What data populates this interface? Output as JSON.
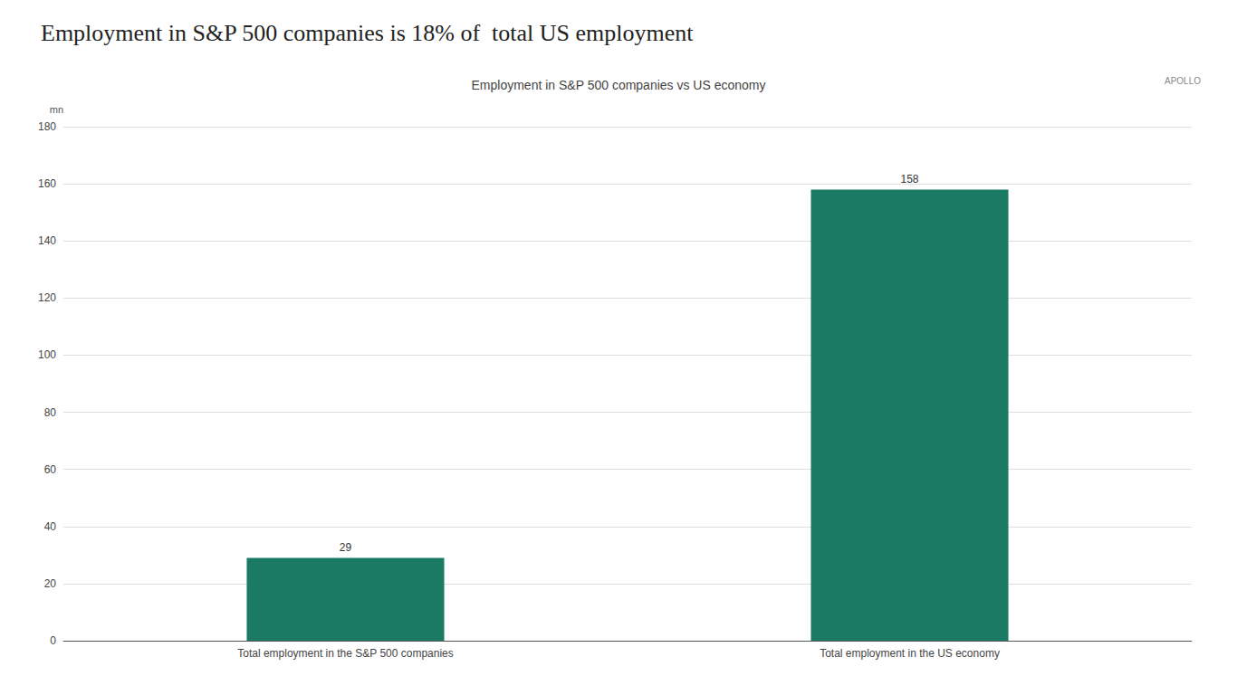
{
  "chart_data": {
    "type": "bar",
    "title": "Employment in S&P 500 companies is 18% of  total US employment",
    "subtitle": "Employment in S&P 500 companies vs US economy",
    "ylabel": "mn",
    "annotations": [
      "APOLLO"
    ],
    "categories": [
      "Total employment in the S&P 500 companies",
      "Total employment in the US economy"
    ],
    "values": [
      29,
      158
    ],
    "color": "#1a7a63",
    "ylim": [
      0,
      180
    ],
    "yticks": [
      0,
      20,
      40,
      60,
      80,
      100,
      120,
      140,
      160,
      180
    ],
    "grid": true,
    "data_labels": true
  }
}
